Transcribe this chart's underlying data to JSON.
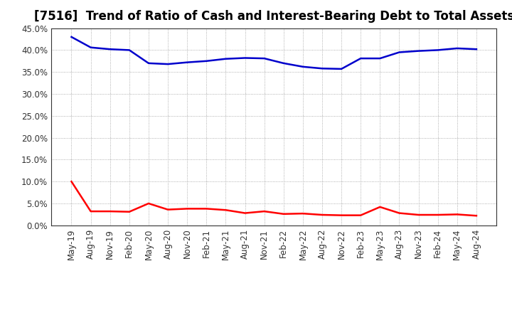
{
  "title": "[7516]  Trend of Ratio of Cash and Interest-Bearing Debt to Total Assets",
  "x_labels": [
    "May-19",
    "Aug-19",
    "Nov-19",
    "Feb-20",
    "May-20",
    "Aug-20",
    "Nov-20",
    "Feb-21",
    "May-21",
    "Aug-21",
    "Nov-21",
    "Feb-22",
    "May-22",
    "Aug-22",
    "Nov-22",
    "Feb-23",
    "May-23",
    "Aug-23",
    "Nov-23",
    "Feb-24",
    "May-24",
    "Aug-24"
  ],
  "cash": [
    10.0,
    3.2,
    3.2,
    3.1,
    5.0,
    3.6,
    3.8,
    3.8,
    3.5,
    2.8,
    3.2,
    2.6,
    2.7,
    2.4,
    2.3,
    2.3,
    4.2,
    2.8,
    2.4,
    2.4,
    2.5,
    2.2
  ],
  "debt": [
    43.0,
    40.6,
    40.2,
    40.0,
    37.0,
    36.8,
    37.2,
    37.5,
    38.0,
    38.2,
    38.1,
    37.0,
    36.2,
    35.8,
    35.7,
    38.1,
    38.1,
    39.5,
    39.8,
    40.0,
    40.4,
    40.2
  ],
  "cash_color": "#FF0000",
  "debt_color": "#0000CC",
  "background_color": "#FFFFFF",
  "plot_bg_color": "#FFFFFF",
  "grid_color": "#999999",
  "ylim": [
    0.0,
    45.0
  ],
  "yticks": [
    0.0,
    5.0,
    10.0,
    15.0,
    20.0,
    25.0,
    30.0,
    35.0,
    40.0,
    45.0
  ],
  "title_fontsize": 12,
  "axis_fontsize": 8.5,
  "legend_fontsize": 9.5,
  "line_width": 1.8
}
